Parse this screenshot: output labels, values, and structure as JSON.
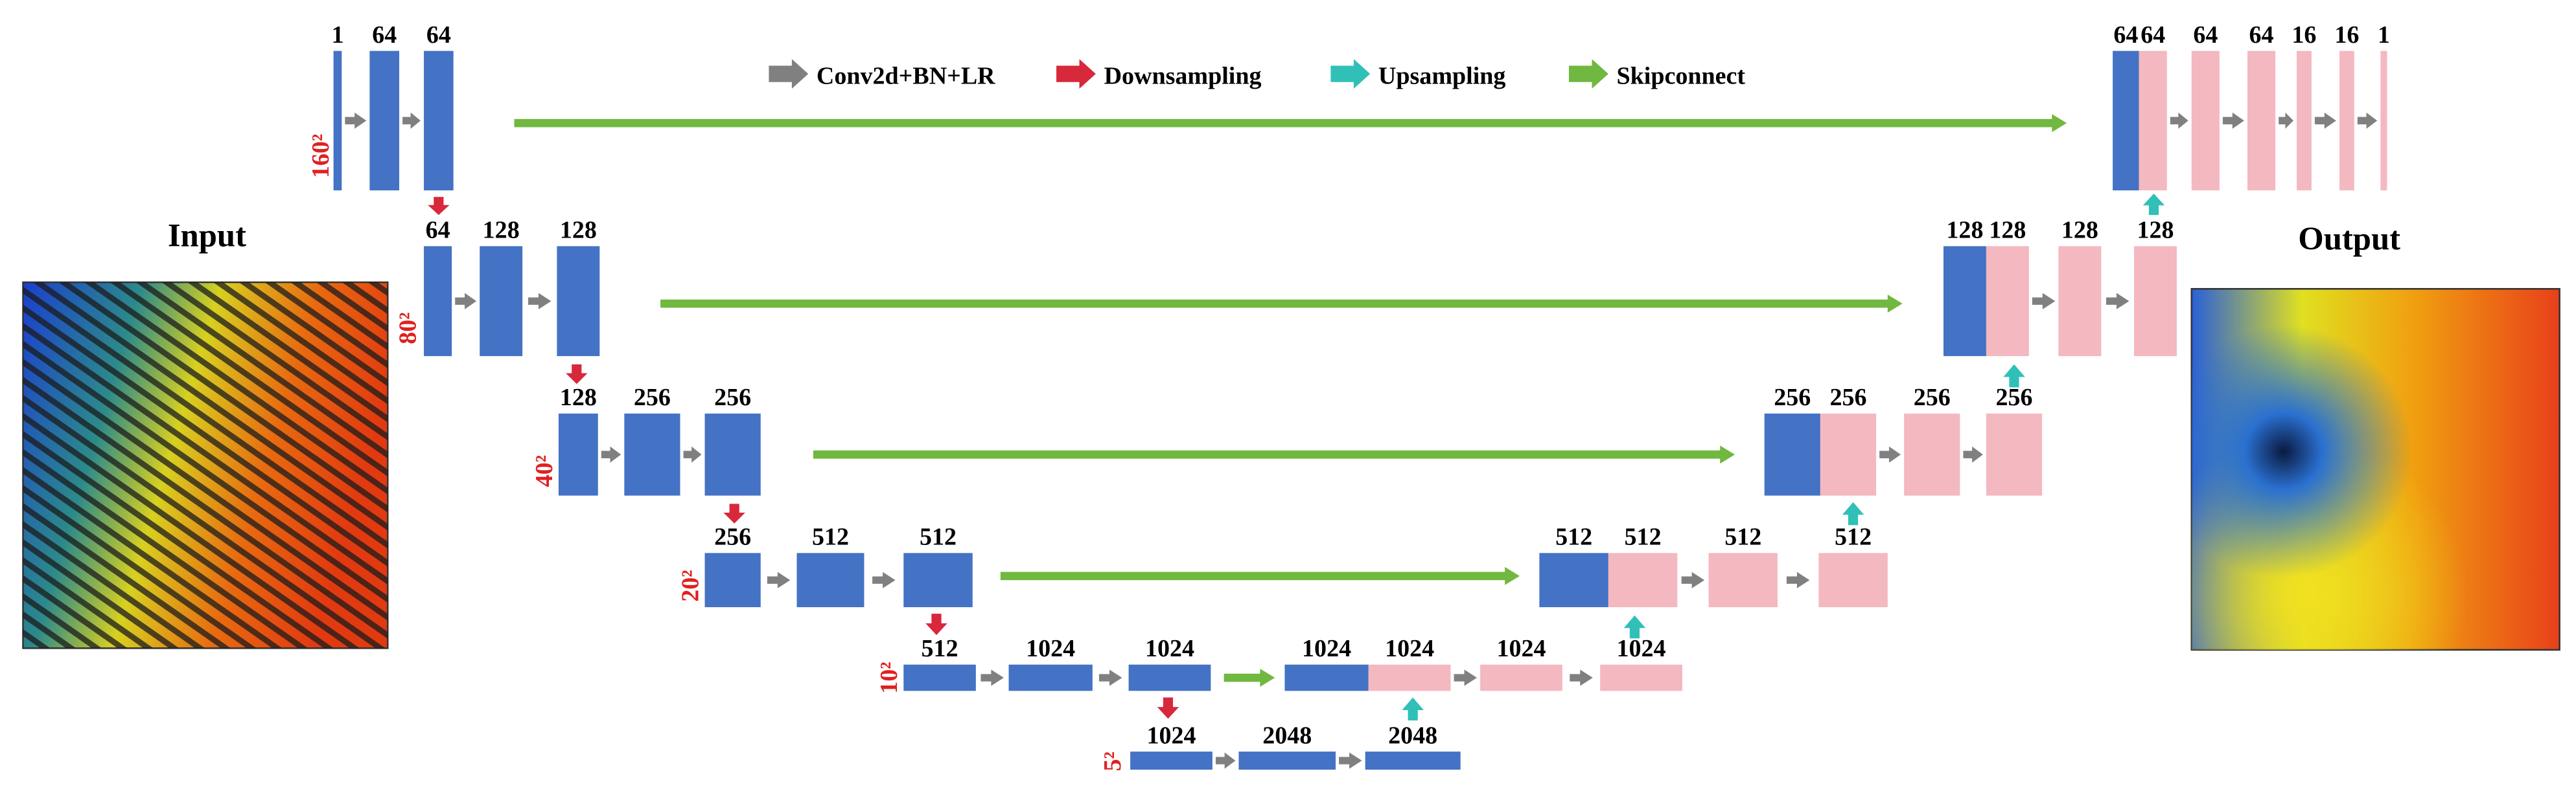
{
  "legend": [
    "Conv2d+BN+LR",
    "Downsampling",
    "Upsampling",
    "Skipconnect"
  ],
  "input_label": "Input",
  "output_label": "Output",
  "levels": [
    {
      "resolution": "160²",
      "encoder": [
        "1",
        "64",
        "64"
      ],
      "decoder": [
        "64",
        "64",
        "64",
        "64",
        "16",
        "16",
        "1"
      ]
    },
    {
      "resolution": "80²",
      "encoder": [
        "64",
        "128",
        "128"
      ],
      "decoder": [
        "128",
        "128",
        "128",
        "128"
      ]
    },
    {
      "resolution": "40²",
      "encoder": [
        "128",
        "256",
        "256"
      ],
      "decoder": [
        "256",
        "256",
        "256",
        "256"
      ]
    },
    {
      "resolution": "20²",
      "encoder": [
        "256",
        "512",
        "512"
      ],
      "decoder": [
        "512",
        "512",
        "512",
        "512"
      ]
    },
    {
      "resolution": "10²",
      "encoder": [
        "512",
        "1024",
        "1024"
      ],
      "decoder": [
        "1024",
        "1024",
        "1024",
        "1024"
      ]
    },
    {
      "resolution": "5²",
      "encoder": [
        "1024",
        "2048",
        "2048"
      ],
      "decoder": []
    }
  ]
}
